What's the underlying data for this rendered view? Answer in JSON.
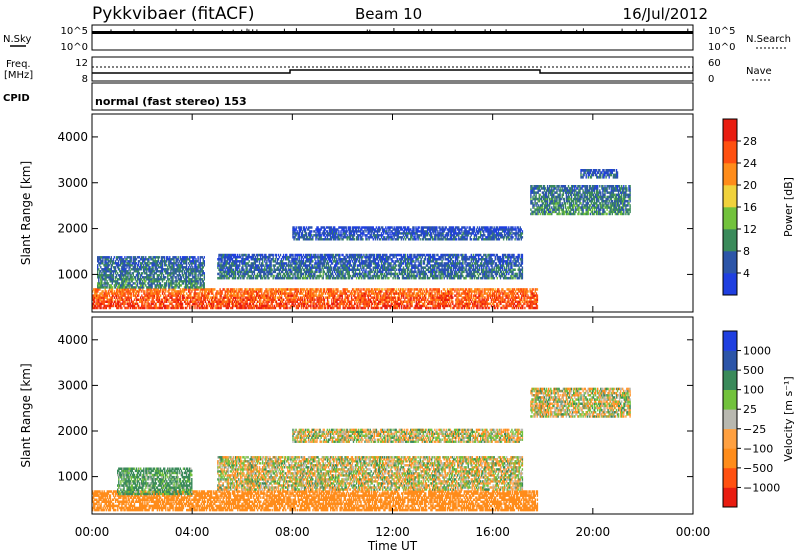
{
  "header": {
    "site": "Pykkvibaer (fitACF)",
    "beam": "Beam 10",
    "date": "16/Jul/2012"
  },
  "params": {
    "nsky_label": "N.Sky",
    "nsearch_label": "N.Search",
    "nsky_ticks": [
      "10^5",
      "10^0"
    ],
    "nsearch_ticks": [
      "10^5",
      "10^0"
    ],
    "freq_label_line1": "Freq.",
    "freq_label_line2": "[MHz]",
    "freq_ticks": [
      "12",
      "8"
    ],
    "nave_label": "Nave",
    "nave_ticks": [
      "60",
      "0"
    ],
    "cpid_label": "CPID",
    "cpid_text": "normal (fast stereo) 153"
  },
  "colors": {
    "power": [
      "#1f3fe0",
      "#2c55a8",
      "#3a8a5a",
      "#72c23c",
      "#f0d23c",
      "#ff8c1a",
      "#ff5010",
      "#e81c10"
    ],
    "velocity": [
      "#e81c10",
      "#ff5010",
      "#ff8c1a",
      "#ffa040",
      "#b8b8b0",
      "#72c23c",
      "#3a8a5a",
      "#2c55a8",
      "#1f3fe0"
    ]
  },
  "chart_data": [
    {
      "type": "heatmap",
      "title": "",
      "xlabel": "",
      "ylabel": "Slant Range [km]",
      "xlim": [
        "00:00",
        "24:00"
      ],
      "ylim": [
        180,
        4500
      ],
      "x_ticks": [
        "00:00",
        "04:00",
        "08:00",
        "12:00",
        "16:00",
        "20:00",
        "00:00"
      ],
      "y_ticks": [
        "1000",
        "2000",
        "3000",
        "4000"
      ],
      "colorbar": {
        "label": "Power [dB]",
        "ticks": [
          "4",
          "8",
          "12",
          "16",
          "20",
          "24",
          "28"
        ],
        "range": [
          0,
          30
        ]
      },
      "echo_bands": [
        {
          "t0": 0.0,
          "t1": 17.8,
          "r0": 250,
          "r1": 700,
          "value": 26
        },
        {
          "t0": 0.2,
          "t1": 4.5,
          "r0": 700,
          "r1": 1400,
          "value": 9
        },
        {
          "t0": 5.0,
          "t1": 17.2,
          "r0": 900,
          "r1": 1450,
          "value": 8
        },
        {
          "t0": 8.0,
          "t1": 17.2,
          "r0": 1750,
          "r1": 2050,
          "value": 6
        },
        {
          "t0": 17.5,
          "t1": 21.5,
          "r0": 2300,
          "r1": 2950,
          "value": 10
        },
        {
          "t0": 19.5,
          "t1": 21.0,
          "r0": 3100,
          "r1": 3300,
          "value": 7
        }
      ]
    },
    {
      "type": "heatmap",
      "title": "",
      "xlabel": "Time UT",
      "ylabel": "Slant Range [km]",
      "xlim": [
        "00:00",
        "24:00"
      ],
      "ylim": [
        180,
        4500
      ],
      "x_ticks": [
        "00:00",
        "04:00",
        "08:00",
        "12:00",
        "16:00",
        "20:00",
        "00:00"
      ],
      "y_ticks": [
        "1000",
        "2000",
        "3000",
        "4000"
      ],
      "colorbar": {
        "label": "Velocity [m s⁻¹]",
        "ticks": [
          "1000",
          "500",
          "100",
          "25",
          "−25",
          "−100",
          "−500",
          "−1000"
        ],
        "range": [
          -1000,
          1000
        ]
      },
      "echo_bands": [
        {
          "t0": 0.0,
          "t1": 17.8,
          "r0": 250,
          "r1": 700,
          "value": -300
        },
        {
          "t0": 1.0,
          "t1": 4.0,
          "r0": 600,
          "r1": 1200,
          "value": 150
        },
        {
          "t0": 5.0,
          "t1": 17.2,
          "r0": 700,
          "r1": 1450,
          "value": 0
        },
        {
          "t0": 8.0,
          "t1": 17.2,
          "r0": 1750,
          "r1": 2050,
          "value": 0
        },
        {
          "t0": 17.5,
          "t1": 21.5,
          "r0": 2300,
          "r1": 2950,
          "value": 0
        }
      ]
    }
  ]
}
